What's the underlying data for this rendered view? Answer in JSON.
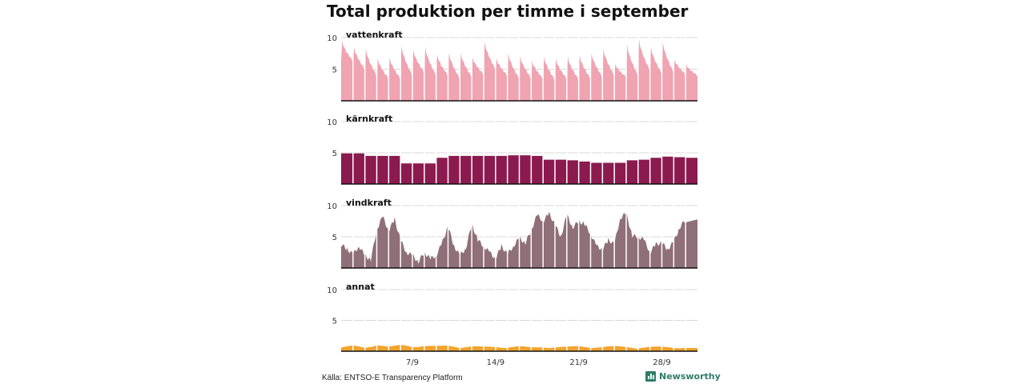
{
  "title": "Total produktion per timme i september",
  "source": "Källa: ENTSO-E Transparency Platform",
  "brand": {
    "name": "Newsworthy",
    "icon": "newsworthy-logo-icon",
    "color": "#2e7d6a"
  },
  "chart_data": {
    "type": "area",
    "layout": "small-multiples",
    "x_range": [
      1,
      30
    ],
    "x_unit": "day of september",
    "xticks": [
      {
        "label": "7/9",
        "day": 7
      },
      {
        "label": "14/9",
        "day": 14
      },
      {
        "label": "21/9",
        "day": 21
      },
      {
        "label": "28/9",
        "day": 28
      }
    ],
    "yticks": [
      5,
      10
    ],
    "ylim": [
      0,
      10
    ],
    "grid": true,
    "series": [
      {
        "name": "vattenkraft",
        "color": "#f0a3b1",
        "style": "daily-cycle",
        "peaks": [
          9.4,
          8.5,
          8.2,
          6.7,
          6.8,
          8.7,
          8.0,
          8.5,
          7.3,
          7.6,
          7.5,
          6.8,
          9.3,
          6.7,
          7.5,
          7.0,
          6.3,
          7.0,
          6.6,
          6.9,
          7.2,
          7.5,
          8.2,
          5.8,
          8.8,
          9.7,
          8.5,
          9.3,
          6.5,
          5.7
        ],
        "troughs": [
          6.3,
          5.0,
          4.0,
          3.5,
          3.5,
          4.0,
          4.5,
          4.0,
          4.0,
          3.5,
          3.8,
          4.2,
          5.0,
          4.0,
          3.5,
          3.6,
          3.5,
          3.3,
          3.5,
          3.4,
          3.5,
          3.8,
          4.0,
          3.8,
          4.0,
          4.8,
          4.3,
          4.5,
          4.2,
          4.0
        ]
      },
      {
        "name": "kärnkraft",
        "color": "#8b1a4f",
        "style": "step",
        "values": [
          4.9,
          4.9,
          4.5,
          4.5,
          4.5,
          3.3,
          3.3,
          3.3,
          4.2,
          4.5,
          4.5,
          4.5,
          4.5,
          4.5,
          4.6,
          4.6,
          4.5,
          3.9,
          3.9,
          3.8,
          3.6,
          3.4,
          3.4,
          3.4,
          3.8,
          3.9,
          4.2,
          4.4,
          4.3,
          4.2
        ]
      },
      {
        "name": "vindkraft",
        "color": "#8f6f78",
        "style": "smooth",
        "points": [
          [
            1,
            3.8
          ],
          [
            1.5,
            3.0
          ],
          [
            2,
            2.2
          ],
          [
            2.5,
            3.5
          ],
          [
            3,
            2.0
          ],
          [
            3.5,
            1.3
          ],
          [
            4,
            6.2
          ],
          [
            4.5,
            8.2
          ],
          [
            5,
            6.0
          ],
          [
            5.5,
            7.8
          ],
          [
            6,
            4.5
          ],
          [
            6.5,
            2.5
          ],
          [
            7,
            2.0
          ],
          [
            7.5,
            1.0
          ],
          [
            8,
            2.5
          ],
          [
            8.5,
            1.5
          ],
          [
            9,
            2.0
          ],
          [
            9.5,
            4.0
          ],
          [
            10,
            6.7
          ],
          [
            10.5,
            3.5
          ],
          [
            11,
            2.0
          ],
          [
            11.5,
            3.2
          ],
          [
            12,
            7.0
          ],
          [
            12.5,
            4.5
          ],
          [
            13,
            3.5
          ],
          [
            13.5,
            2.5
          ],
          [
            14,
            1.5
          ],
          [
            14.5,
            3.5
          ],
          [
            15,
            2.2
          ],
          [
            15.5,
            3.5
          ],
          [
            16,
            4.8
          ],
          [
            16.5,
            4.0
          ],
          [
            17,
            6.0
          ],
          [
            17.5,
            8.5
          ],
          [
            18,
            7.5
          ],
          [
            18.5,
            8.7
          ],
          [
            19,
            7.0
          ],
          [
            19.5,
            5.0
          ],
          [
            20,
            8.5
          ],
          [
            20.5,
            6.5
          ],
          [
            21,
            7.5
          ],
          [
            21.5,
            7.0
          ],
          [
            22,
            5.5
          ],
          [
            22.5,
            3.5
          ],
          [
            23,
            3.0
          ],
          [
            23.5,
            4.5
          ],
          [
            24,
            3.8
          ],
          [
            24.5,
            8.0
          ],
          [
            25,
            8.8
          ],
          [
            25.5,
            5.2
          ],
          [
            26,
            5.0
          ],
          [
            26.5,
            4.5
          ],
          [
            27,
            2.5
          ],
          [
            27.5,
            3.8
          ],
          [
            28,
            4.0
          ],
          [
            28.5,
            3.0
          ],
          [
            29,
            4.2
          ],
          [
            29.5,
            6.5
          ],
          [
            30,
            7.8
          ]
        ]
      },
      {
        "name": "annat",
        "color": "#f3a32c",
        "style": "small",
        "points": [
          [
            1,
            0.4
          ],
          [
            2,
            0.7
          ],
          [
            3,
            0.4
          ],
          [
            4,
            0.9
          ],
          [
            5,
            0.5
          ],
          [
            6,
            0.8
          ],
          [
            7,
            0.6
          ],
          [
            8,
            0.7
          ],
          [
            9,
            0.6
          ],
          [
            10,
            0.7
          ],
          [
            11,
            0.5
          ],
          [
            12,
            0.6
          ],
          [
            13,
            0.5
          ],
          [
            14,
            0.5
          ],
          [
            15,
            0.5
          ],
          [
            16,
            0.6
          ],
          [
            17,
            0.4
          ],
          [
            18,
            0.5
          ],
          [
            19,
            0.5
          ],
          [
            20,
            0.5
          ],
          [
            21,
            0.6
          ],
          [
            22,
            0.5
          ],
          [
            23,
            0.5
          ],
          [
            24,
            0.6
          ],
          [
            25,
            0.5
          ],
          [
            26,
            0.4
          ],
          [
            27,
            0.5
          ],
          [
            28,
            0.5
          ],
          [
            29,
            0.4
          ],
          [
            30,
            0.5
          ]
        ]
      }
    ]
  }
}
